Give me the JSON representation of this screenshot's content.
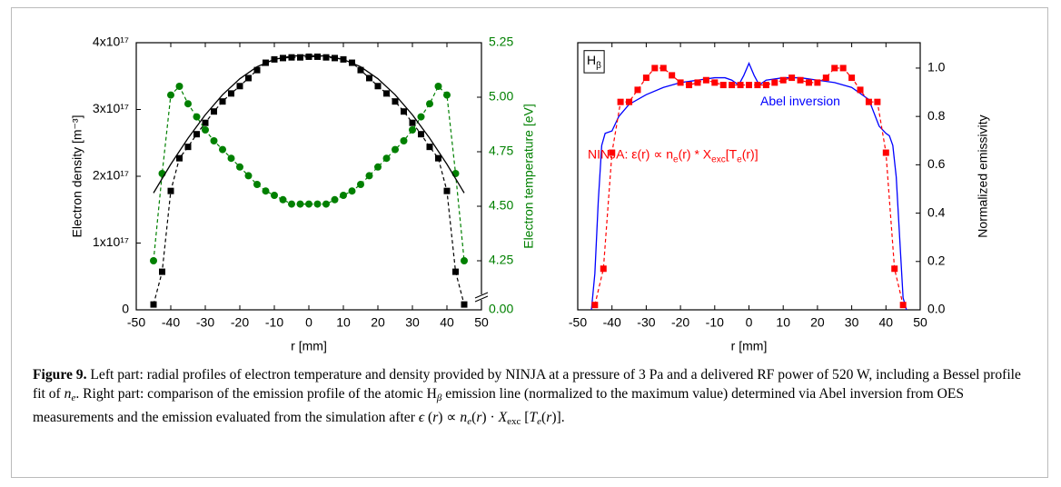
{
  "chart_data": [
    {
      "type": "line",
      "xlabel": "r [mm]",
      "ylabel": "Electron density [m⁻³]",
      "y2label": "Electron temperature [eV]",
      "y2color": "#008000",
      "xlim": [
        -50,
        50
      ],
      "xticks": [
        -50,
        -40,
        -30,
        -20,
        -10,
        0,
        10,
        20,
        30,
        40,
        50
      ],
      "ylim": [
        0,
        4e+17
      ],
      "yticks": [
        0,
        {
          "value": 1e+17,
          "label": "1x10¹⁷"
        },
        {
          "value": 2e+17,
          "label": "2x10¹⁷"
        },
        {
          "value": 3e+17,
          "label": "3x10¹⁷"
        },
        {
          "value": 4e+17,
          "label": "4x10¹⁷"
        }
      ],
      "y2lim": [
        0,
        5.25
      ],
      "y2break": [
        0.05,
        4.1
      ],
      "y2ticks": [
        {
          "value": 0,
          "label": "0.00"
        },
        4.25,
        {
          "value": 4.5,
          "label": "4.50"
        },
        4.75,
        {
          "value": 5,
          "label": "5.00"
        },
        5.25
      ],
      "series": [
        {
          "color": "#000000",
          "marker": "square",
          "line": "dashed",
          "x": [
            -45,
            -42.5,
            -40,
            -37.5,
            -35,
            -32.5,
            -30,
            -27.5,
            -25,
            -22.5,
            -20,
            -17.5,
            -15,
            -12.5,
            -10,
            -7.5,
            -5,
            -2.5,
            0,
            2.5,
            5,
            7.5,
            10,
            12.5,
            15,
            17.5,
            20,
            22.5,
            25,
            27.5,
            30,
            32.5,
            35,
            37.5,
            40,
            42.5,
            45
          ],
          "values": [
            8000000000000000.0,
            5.7e+16,
            1.78e+17,
            2.27e+17,
            2.44e+17,
            2.63e+17,
            2.8e+17,
            2.97e+17,
            3.12e+17,
            3.24e+17,
            3.35e+17,
            3.47e+17,
            3.59e+17,
            3.7e+17,
            3.75e+17,
            3.77e+17,
            3.78e+17,
            3.78e+17,
            3.79e+17,
            3.79e+17,
            3.78e+17,
            3.77e+17,
            3.75e+17,
            3.7e+17,
            3.59e+17,
            3.47e+17,
            3.35e+17,
            3.24e+17,
            3.12e+17,
            2.97e+17,
            2.8e+17,
            2.63e+17,
            2.44e+17,
            2.27e+17,
            1.78e+17,
            5.7e+16,
            8000000000000000.0
          ]
        },
        {
          "color": "#008000",
          "marker": "circle",
          "line": "dashed",
          "axis": "y2",
          "x": [
            -45,
            -42.5,
            -40,
            -37.5,
            -35,
            -32.5,
            -30,
            -27.5,
            -25,
            -22.5,
            -20,
            -17.5,
            -15,
            -12.5,
            -10,
            -7.5,
            -5,
            -2.5,
            0,
            2.5,
            5,
            7.5,
            10,
            12.5,
            15,
            17.5,
            20,
            22.5,
            25,
            27.5,
            30,
            32.5,
            35,
            37.5,
            40,
            42.5,
            45
          ],
          "values": [
            4.25,
            4.65,
            5.01,
            5.05,
            4.97,
            4.91,
            4.85,
            4.8,
            4.76,
            4.72,
            4.68,
            4.64,
            4.6,
            4.57,
            4.55,
            4.53,
            4.51,
            4.51,
            4.51,
            4.51,
            4.51,
            4.53,
            4.55,
            4.57,
            4.6,
            4.64,
            4.68,
            4.72,
            4.76,
            4.8,
            4.85,
            4.91,
            4.97,
            5.05,
            5.01,
            4.65,
            4.25
          ]
        },
        {
          "color": "#000000",
          "line": "solid",
          "x": [
            -45,
            -40,
            -35,
            -30,
            -25,
            -20,
            -15,
            -10,
            -5,
            0,
            5,
            10,
            15,
            20,
            25,
            30,
            35,
            40,
            45
          ],
          "values": [
            1.75e+17,
            2.18e+17,
            2.57e+17,
            2.92e+17,
            3.22e+17,
            3.46e+17,
            3.64e+17,
            3.75e+17,
            3.8e+17,
            3.81e+17,
            3.8e+17,
            3.75e+17,
            3.64e+17,
            3.46e+17,
            3.22e+17,
            2.92e+17,
            2.57e+17,
            2.18e+17,
            1.75e+17
          ]
        }
      ]
    },
    {
      "type": "line",
      "yaxis_side": "right",
      "xlabel": "r [mm]",
      "ylabel": "Normalized emissivity",
      "xlim": [
        -50,
        50
      ],
      "xticks": [
        -50,
        -40,
        -30,
        -20,
        -10,
        0,
        10,
        20,
        30,
        40,
        50
      ],
      "ylim": [
        0,
        1.105
      ],
      "yticks": [
        {
          "value": 0,
          "label": "0.0"
        },
        0.2,
        0.4,
        0.6,
        0.8,
        {
          "value": 1,
          "label": "1.0"
        }
      ],
      "label_box": {
        "parts": [
          {
            "text": "H"
          },
          {
            "text": "β",
            "sub": true
          }
        ]
      },
      "annotations": [
        {
          "color": "#0000ff",
          "parts": [
            {
              "text": "Abel inversion"
            }
          ]
        },
        {
          "color": "#ff0000",
          "parts": [
            {
              "text": "NINJA: ε(r) ∝ n"
            },
            {
              "text": "e",
              "sub": true
            },
            {
              "text": "(r) * X"
            },
            {
              "text": "exc",
              "sub": true
            },
            {
              "text": "[T"
            },
            {
              "text": "e",
              "sub": true
            },
            {
              "text": "(r)]"
            }
          ]
        }
      ],
      "series": [
        {
          "color": "#0000ff",
          "line": "solid",
          "x": [
            -46,
            -45,
            -44,
            -43,
            -42,
            -40,
            -38,
            -35,
            -30,
            -25,
            -20,
            -15,
            -10,
            -7,
            -5,
            -3,
            -1.5,
            0,
            1.5,
            3,
            5,
            10,
            15,
            20,
            25,
            30,
            35,
            38,
            40,
            41,
            42,
            43,
            44,
            45,
            46
          ],
          "values": [
            0,
            0.15,
            0.45,
            0.68,
            0.73,
            0.74,
            0.8,
            0.85,
            0.89,
            0.92,
            0.94,
            0.95,
            0.96,
            0.96,
            0.95,
            0.93,
            0.97,
            1.02,
            0.97,
            0.93,
            0.95,
            0.96,
            0.96,
            0.95,
            0.94,
            0.92,
            0.87,
            0.76,
            0.73,
            0.72,
            0.68,
            0.55,
            0.3,
            0.05,
            0
          ]
        },
        {
          "color": "#ff0000",
          "marker": "square",
          "line": "dashed",
          "x": [
            -45,
            -42.5,
            -40,
            -37.5,
            -35,
            -32.5,
            -30,
            -27.5,
            -25,
            -22.5,
            -20,
            -17.5,
            -15,
            -12.5,
            -10,
            -7.5,
            -5,
            -2.5,
            0,
            2.5,
            5,
            7.5,
            10,
            12.5,
            15,
            17.5,
            20,
            22.5,
            25,
            27.5,
            30,
            32.5,
            35,
            37.5,
            40,
            42.5,
            45
          ],
          "values": [
            0.02,
            0.17,
            0.65,
            0.86,
            0.86,
            0.91,
            0.96,
            1,
            1,
            0.97,
            0.94,
            0.93,
            0.94,
            0.95,
            0.94,
            0.93,
            0.93,
            0.93,
            0.93,
            0.93,
            0.93,
            0.94,
            0.95,
            0.96,
            0.95,
            0.94,
            0.94,
            0.96,
            1,
            1,
            0.96,
            0.91,
            0.86,
            0.86,
            0.65,
            0.17,
            0.02
          ]
        }
      ]
    }
  ],
  "caption": {
    "runs": [
      {
        "text": "Figure 9.",
        "style": "bold"
      },
      {
        "text": " Left part: radial profiles of electron temperature and density provided by NINJA at a pressure of 3 Pa and a delivered RF power of 520 W, including a Bessel profile fit of "
      },
      {
        "text": "n",
        "style": "italic"
      },
      {
        "text": "e",
        "style": "italic-sub"
      },
      {
        "text": ". Right part: comparison of the emission profile of the atomic H"
      },
      {
        "text": "β",
        "style": "italic-sub"
      },
      {
        "text": " emission line (normalized to the maximum value) determined via Abel inversion from OES measurements and the emission evaluated from the simulation after "
      },
      {
        "text": "ϵ",
        "style": "italic"
      },
      {
        "text": " ("
      },
      {
        "text": "r",
        "style": "italic"
      },
      {
        "text": ") ∝ "
      },
      {
        "text": "n",
        "style": "italic"
      },
      {
        "text": "e",
        "style": "italic-sub"
      },
      {
        "text": "("
      },
      {
        "text": "r",
        "style": "italic"
      },
      {
        "text": ") · "
      },
      {
        "text": "X",
        "style": "italic"
      },
      {
        "text": "exc",
        "style": "sub"
      },
      {
        "text": " ["
      },
      {
        "text": "T",
        "style": "italic"
      },
      {
        "text": "e",
        "style": "italic-sub"
      },
      {
        "text": "("
      },
      {
        "text": "r",
        "style": "italic"
      },
      {
        "text": ")]."
      }
    ]
  }
}
